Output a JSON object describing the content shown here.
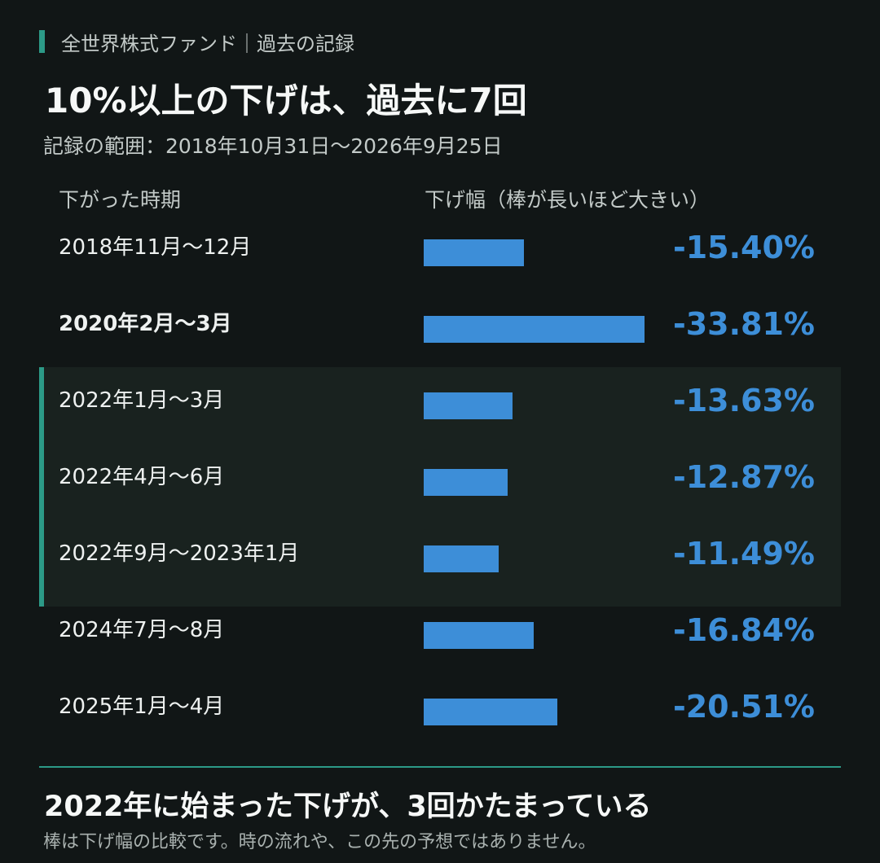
{
  "kicker": "全世界株式ファンド｜過去の記録",
  "title": "10%以上の下げは、過去に7回",
  "subtitle": "記録の範囲：2018年10月31日〜2026年9月25日",
  "columns": {
    "period": "下がった時期",
    "drop": "下げ幅（棒が長いほど大きい）"
  },
  "colors": {
    "background": "#111616",
    "accent": "#2c9a87",
    "bar": "#3d8ed8",
    "highlight_band": "#19221f"
  },
  "chart_data": {
    "type": "bar",
    "orientation": "horizontal",
    "categories": [
      "2018年11月〜12月",
      "2020年2月〜3月",
      "2022年1月〜3月",
      "2022年4月〜6月",
      "2022年9月〜2023年1月",
      "2024年7月〜8月",
      "2025年1月〜4月"
    ],
    "values": [
      -15.4,
      -33.81,
      -13.63,
      -12.87,
      -11.49,
      -16.84,
      -20.51
    ],
    "value_labels": [
      "-15.40%",
      "-33.81%",
      "-13.63%",
      "-12.87%",
      "-11.49%",
      "-16.84%",
      "-20.51%"
    ],
    "emphasized_category": "2020年2月〜3月",
    "highlighted_categories": [
      "2022年1月〜3月",
      "2022年4月〜6月",
      "2022年9月〜2023年1月"
    ],
    "xlim": [
      0,
      33.81
    ],
    "grid": false,
    "legend": "none"
  },
  "footer": {
    "heading": "2022年に始まった下げが、3回かたまっている",
    "note": "棒は下げ幅の比較です。時の流れや、この先の予想ではありません。"
  }
}
